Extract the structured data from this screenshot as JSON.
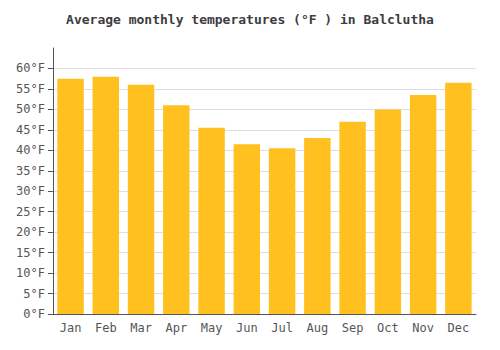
{
  "chart_data": {
    "type": "bar",
    "title": "Average monthly temperatures (°F ) in Balclutha",
    "categories": [
      "Jan",
      "Feb",
      "Mar",
      "Apr",
      "May",
      "Jun",
      "Jul",
      "Aug",
      "Sep",
      "Oct",
      "Nov",
      "Dec"
    ],
    "values": [
      57.5,
      58.0,
      56.0,
      51.0,
      45.5,
      41.5,
      40.5,
      43.0,
      47.0,
      50.0,
      53.5,
      56.5
    ],
    "color": "#FFC020",
    "ylim": [
      0,
      65
    ],
    "yticks": [
      {
        "value": 0,
        "label": "0°F"
      },
      {
        "value": 5,
        "label": "5°F"
      },
      {
        "value": 10,
        "label": "10°F"
      },
      {
        "value": 15,
        "label": "15°F"
      },
      {
        "value": 20,
        "label": "20°F"
      },
      {
        "value": 25,
        "label": "25°F"
      },
      {
        "value": 30,
        "label": "30°F"
      },
      {
        "value": 35,
        "label": "35°F"
      },
      {
        "value": 40,
        "label": "40°F"
      },
      {
        "value": 45,
        "label": "45°F"
      },
      {
        "value": 50,
        "label": "50°F"
      },
      {
        "value": 55,
        "label": "55°F"
      },
      {
        "value": 60,
        "label": "60°F"
      }
    ],
    "grid": true
  }
}
